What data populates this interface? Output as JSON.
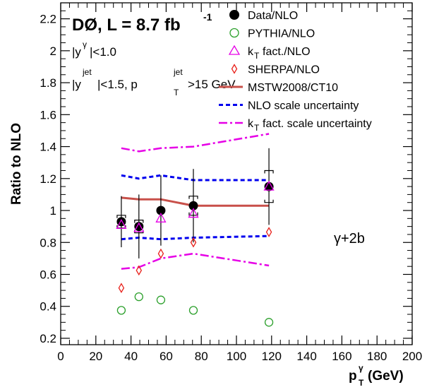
{
  "chart_data": {
    "type": "scatter",
    "xlabel": "p",
    "xlabel_sub": "T",
    "xlabel_sup": "γ",
    "xlabel_unit": "(GeV)",
    "ylabel": "Ratio to NLO",
    "xlim": [
      0,
      200
    ],
    "ylim": [
      0.16,
      2.3
    ],
    "x_ticks": [
      0,
      20,
      40,
      60,
      80,
      100,
      120,
      140,
      160,
      180,
      200
    ],
    "y_ticks": [
      0.2,
      0.4,
      0.6,
      0.8,
      1,
      1.2,
      1.4,
      1.6,
      1.8,
      2,
      2.2
    ],
    "title_main": "DØ, L = 8.7 fb",
    "title_sup": "-1",
    "cut1": {
      "a": "|y",
      "sup": "γ",
      "b": "|<1.0"
    },
    "cut2": {
      "a": "|y",
      "sup1": "jet",
      "b": "|<1.5, p",
      "sub": "T",
      "sup2": "jet",
      "c": ">15 GeV"
    },
    "process_label": "γ+2b",
    "colors": {
      "data": "#000000",
      "pythia": "#2ca02c",
      "kt": "#e600e6",
      "sherpa": "#e8201a",
      "mstw": "#c8504a",
      "nlo_scale": "#0000ee",
      "kt_scale": "#e600e6"
    },
    "series": [
      {
        "name": "Data/NLO",
        "marker": "filled-circle",
        "x": [
          34.5,
          44.5,
          57,
          75.5,
          118.5
        ],
        "y": [
          0.93,
          0.9,
          1.0,
          1.03,
          1.15
        ],
        "err_low": [
          0.16,
          0.2,
          0.22,
          0.23,
          0.24
        ],
        "err_high": [
          0.16,
          0.2,
          0.22,
          0.23,
          0.24
        ],
        "sys_low": [
          0.04,
          0.04,
          0.0,
          0.06,
          0.1
        ],
        "sys_high": [
          0.04,
          0.04,
          0.0,
          0.06,
          0.1
        ]
      },
      {
        "name": "PYTHIA/NLO",
        "marker": "open-circle",
        "x": [
          34.5,
          44.5,
          57,
          75.5,
          118.5
        ],
        "y": [
          0.375,
          0.46,
          0.44,
          0.375,
          0.3
        ]
      },
      {
        "name": "k_T fact./NLO",
        "marker": "open-triangle",
        "x": [
          34.5,
          44.5,
          57,
          75.5,
          118.5
        ],
        "y": [
          0.91,
          0.89,
          0.95,
          0.98,
          1.15
        ]
      },
      {
        "name": "SHERPA/NLO",
        "marker": "open-diamond",
        "x": [
          34.5,
          44.5,
          57,
          75.5,
          118.5
        ],
        "y": [
          0.515,
          0.625,
          0.73,
          0.8,
          0.865
        ]
      },
      {
        "name": "MSTW2008/CT10",
        "line": "solid",
        "x": [
          34.5,
          44.5,
          57,
          75.5,
          118.5
        ],
        "y": [
          1.08,
          1.07,
          1.07,
          1.03,
          1.03
        ]
      },
      {
        "name": "NLO scale uncertainty",
        "line": "dashed",
        "band": true,
        "x": [
          34.5,
          44.5,
          57,
          75.5,
          118.5
        ],
        "upper": [
          1.22,
          1.2,
          1.22,
          1.19,
          1.19
        ],
        "lower": [
          0.82,
          0.83,
          0.82,
          0.83,
          0.84
        ]
      },
      {
        "name": "k_T fact. scale uncertainty",
        "line": "dashdot",
        "band": true,
        "x": [
          34.5,
          44.5,
          57,
          75.5,
          118.5
        ],
        "upper": [
          1.39,
          1.37,
          1.39,
          1.4,
          1.48
        ],
        "lower": [
          0.635,
          0.645,
          0.7,
          0.73,
          0.655
        ]
      }
    ],
    "legend": {
      "placement": "top-right",
      "entries": [
        {
          "key": "data",
          "label": "Data/NLO"
        },
        {
          "key": "pythia",
          "label": "PYTHIA/NLO"
        },
        {
          "key": "kt",
          "label": "fact./NLO",
          "prefix": "k",
          "prefix_sub": "T"
        },
        {
          "key": "sherpa",
          "label": "SHERPA/NLO"
        },
        {
          "key": "mstw",
          "label": "MSTW2008/CT10"
        },
        {
          "key": "nlo_scale",
          "label": "NLO scale uncertainty"
        },
        {
          "key": "kt_scale",
          "label": "fact. scale uncertainty",
          "prefix": "k",
          "prefix_sub": "T"
        }
      ]
    }
  }
}
